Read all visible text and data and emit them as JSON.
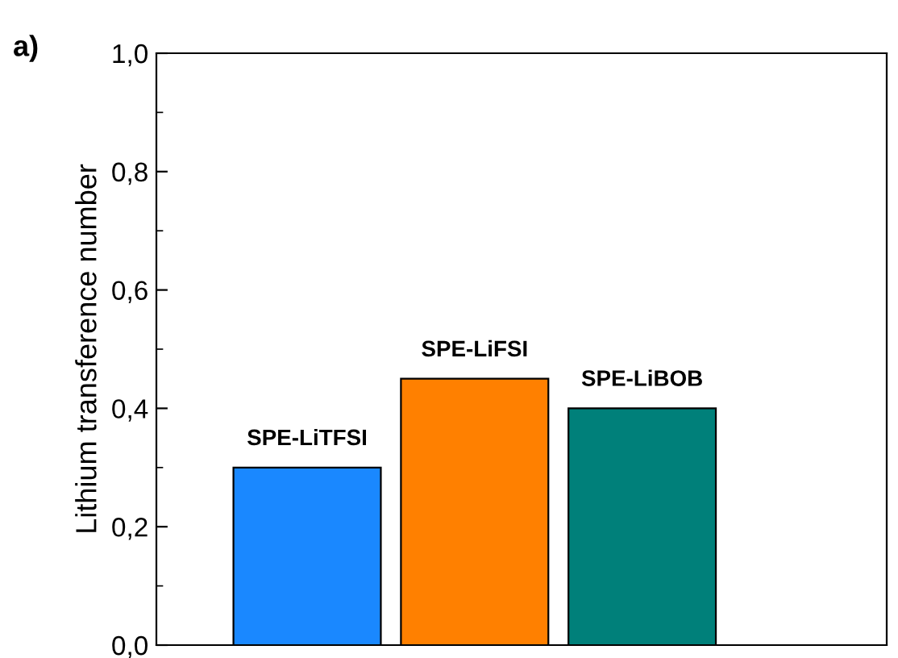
{
  "chart_data": {
    "type": "bar",
    "ylabel": "Lithium transference number",
    "categories": [
      "SPE-LiTFSI",
      "SPE-LiFSI",
      "SPE-LiBOB"
    ],
    "values": [
      0.3,
      0.45,
      0.4
    ],
    "colors": [
      "#1a88ff",
      "#ff8000",
      "#00807a"
    ],
    "ylim": [
      0,
      1.0
    ],
    "yticks": [
      {
        "value": 0,
        "label": "0,0"
      },
      {
        "value": 0.2,
        "label": "0,2"
      },
      {
        "value": 0.4,
        "label": "0,4"
      },
      {
        "value": 0.6,
        "label": "0,6"
      },
      {
        "value": 0.8,
        "label": "0,8"
      },
      {
        "value": 1.0,
        "label": "1,0"
      }
    ],
    "annotations": [
      "a)"
    ],
    "grid": false,
    "legend": false
  }
}
